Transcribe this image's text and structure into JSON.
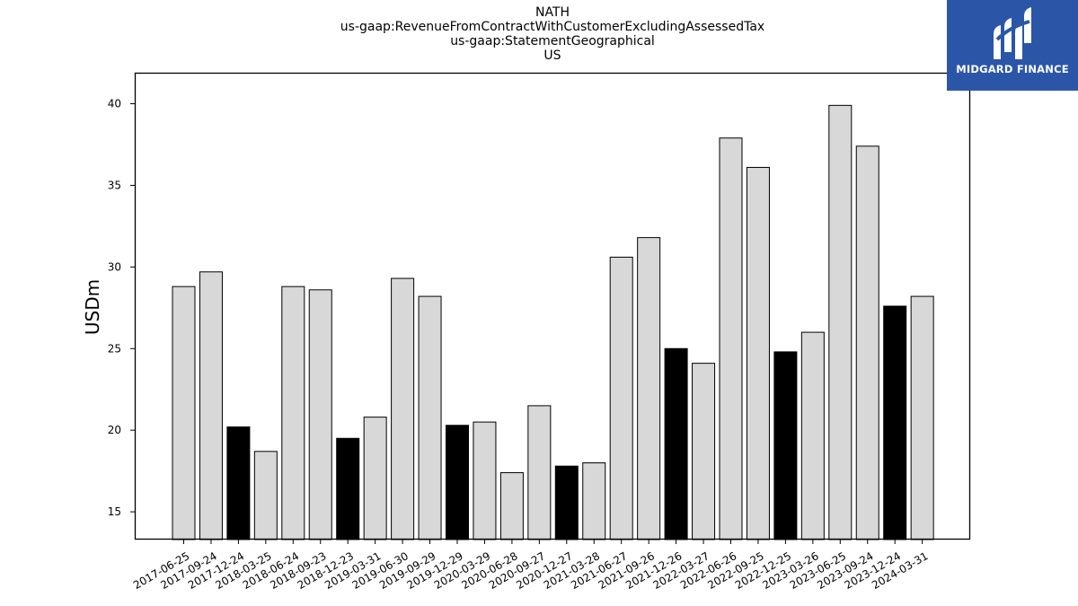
{
  "chart_data": {
    "type": "bar",
    "title_lines": [
      "NATH",
      "us-gaap:RevenueFromContractWithCustomerExcludingAssessedTax",
      "us-gaap:StatementGeographical",
      "US"
    ],
    "xlabel": "",
    "ylabel": "USDm",
    "ylim": [
      13.3,
      41.9
    ],
    "yticks": [
      15,
      20,
      25,
      30,
      35,
      40
    ],
    "grid": false,
    "categories": [
      "2017-06-25",
      "2017-09-24",
      "2017-12-24",
      "2018-03-25",
      "2018-06-24",
      "2018-09-23",
      "2018-12-23",
      "2019-03-31",
      "2019-06-30",
      "2019-09-29",
      "2019-12-29",
      "2020-03-29",
      "2020-06-28",
      "2020-09-27",
      "2020-12-27",
      "2021-03-28",
      "2021-06-27",
      "2021-09-26",
      "2021-12-26",
      "2022-03-27",
      "2022-06-26",
      "2022-09-25",
      "2022-12-25",
      "2023-03-26",
      "2023-06-25",
      "2023-09-24",
      "2023-12-24",
      "2024-03-31"
    ],
    "values": [
      28.8,
      29.7,
      20.2,
      18.7,
      28.8,
      28.6,
      19.5,
      20.8,
      29.3,
      28.2,
      20.3,
      20.5,
      17.4,
      21.5,
      17.8,
      18.0,
      30.6,
      31.8,
      25.0,
      24.1,
      37.9,
      36.1,
      24.8,
      26.0,
      39.9,
      37.4,
      27.6,
      28.2
    ],
    "highlighted": [
      false,
      false,
      true,
      false,
      false,
      false,
      true,
      false,
      false,
      false,
      true,
      false,
      false,
      false,
      true,
      false,
      false,
      false,
      true,
      false,
      false,
      false,
      true,
      false,
      false,
      false,
      true,
      false
    ],
    "colors": {
      "normal": "#d8d8d8",
      "highlight": "#000000",
      "edge": "#000000"
    }
  },
  "logo": {
    "text": "MIDGARD FINANCE",
    "background": "#2b56a8"
  }
}
